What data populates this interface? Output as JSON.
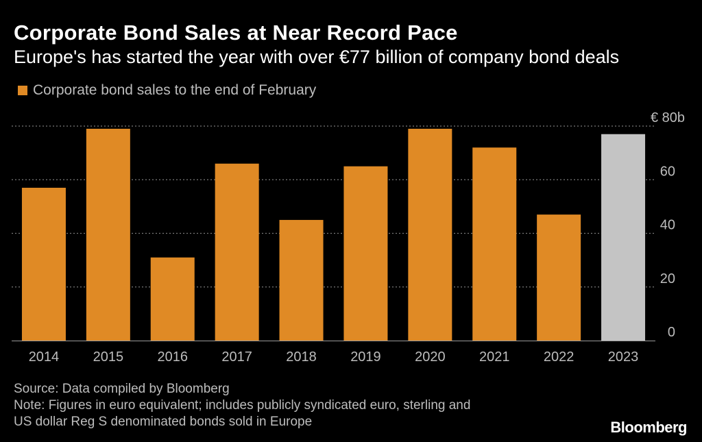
{
  "header": {
    "title": "Corporate Bond Sales at Near Record Pace",
    "subtitle": "Europe's has started the year with over €77 billion of company bond deals"
  },
  "legend": {
    "label": "Corporate bond sales to the end of February"
  },
  "chart_data": {
    "type": "bar",
    "title": "Corporate Bond Sales at Near Record Pace",
    "subtitle": "Europe's has started the year with over €77 billion of company bond deals",
    "categories": [
      "2014",
      "2015",
      "2016",
      "2017",
      "2018",
      "2019",
      "2020",
      "2021",
      "2022",
      "2023"
    ],
    "series": [
      {
        "name": "Corporate bond sales to the end of February",
        "values": [
          57,
          79,
          31,
          66,
          45,
          65,
          79,
          72,
          47,
          77
        ],
        "colors": [
          "#e08a25",
          "#e08a25",
          "#e08a25",
          "#e08a25",
          "#e08a25",
          "#e08a25",
          "#e08a25",
          "#e08a25",
          "#e08a25",
          "#c4c4c4"
        ]
      }
    ],
    "ylim": [
      0,
      80
    ],
    "yticks": [
      {
        "value": 80,
        "label": "€ 80b"
      },
      {
        "value": 60,
        "label": "60"
      },
      {
        "value": 40,
        "label": "40"
      },
      {
        "value": 20,
        "label": "20"
      },
      {
        "value": 0,
        "label": "0"
      }
    ],
    "y_axis_side": "right",
    "grid": "dotted horizontal",
    "xlabel": "",
    "ylabel": ""
  },
  "footer": {
    "source": "Source: Data compiled by Bloomberg",
    "note_line1": "Note: Figures in euro equivalent; includes publicly syndicated euro, sterling and",
    "note_line2": "US dollar Reg S denominated bonds sold in Europe",
    "brand": "Bloomberg"
  }
}
